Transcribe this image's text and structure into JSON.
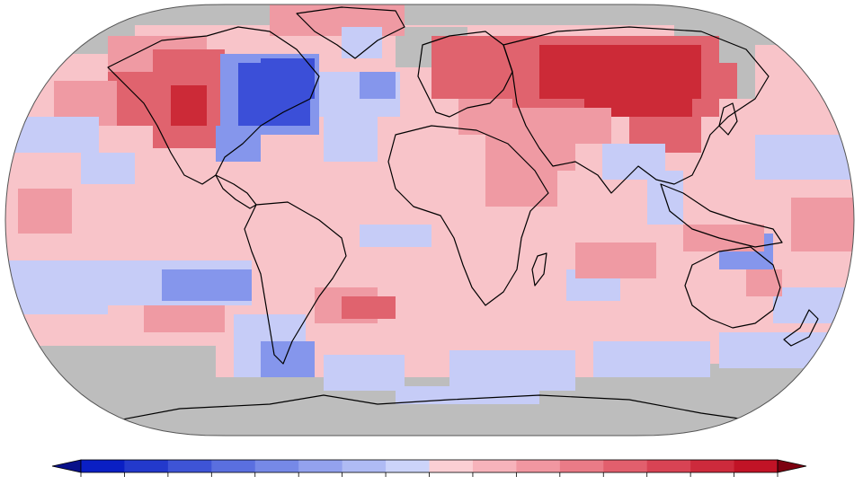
{
  "map": {
    "projection": "robinson",
    "missing_color": "#bdbdbd",
    "land_outline_color": "#000000"
  },
  "legend": {
    "orientation": "horizontal",
    "extends": "both",
    "tick_labels": [],
    "colors": [
      "#0a1fc4",
      "#2339cc",
      "#3e54d6",
      "#5a6fdf",
      "#7689e7",
      "#93a2ee",
      "#afbbf4",
      "#ccd4fa",
      "#fbcfd4",
      "#f7b3bb",
      "#f197a1",
      "#ea7b87",
      "#e25f6d",
      "#d84354",
      "#cd2a3c",
      "#c11326"
    ],
    "end_low_color": "#08108a",
    "end_high_color": "#7d0010"
  },
  "anomaly_palette": {
    "strong_cold": "#3b4fd8",
    "cold": "#8596ec",
    "cool": "#c6ccf7",
    "mild_warm": "#f8c4c9",
    "warm": "#ef9aa3",
    "hot": "#e0636e",
    "very_hot": "#cc2a37"
  }
}
